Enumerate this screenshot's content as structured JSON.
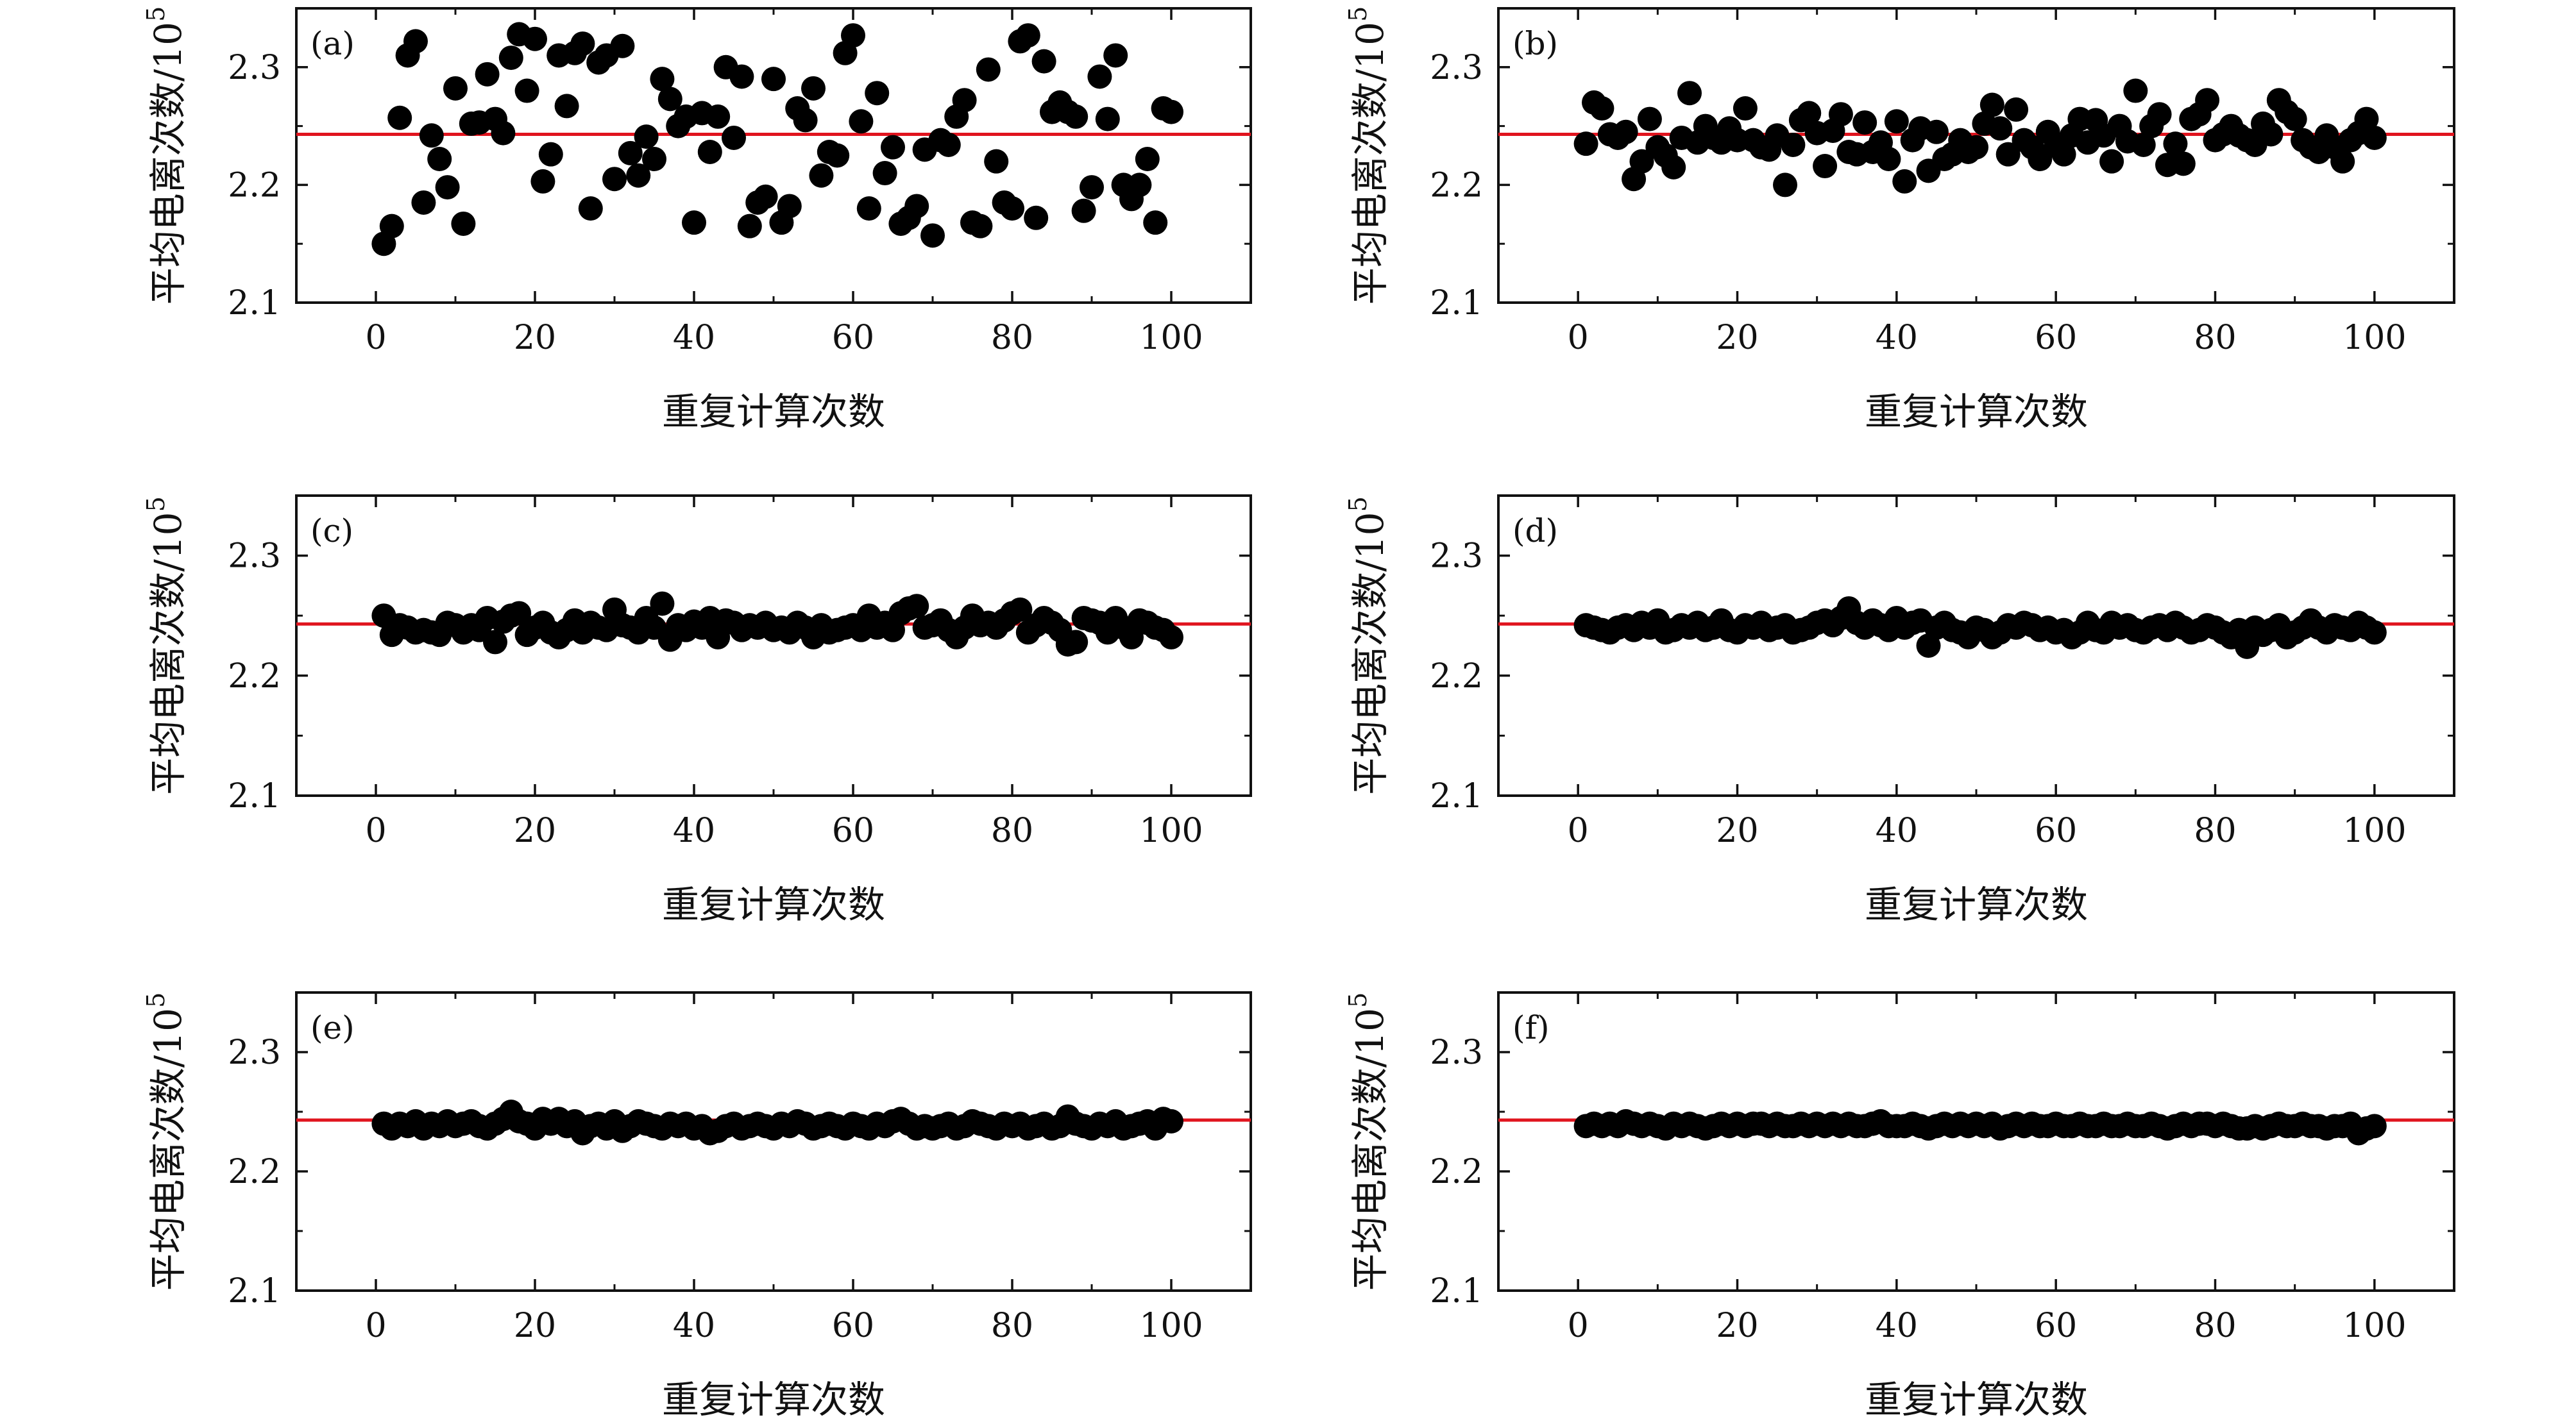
{
  "chart_data": [
    {
      "type": "scatter",
      "panel_label": "(a)",
      "xlabel": "重复计算次数",
      "ylabel": "平均电离次数/10",
      "ylabel_exponent": "5",
      "xlim": [
        -10,
        110
      ],
      "ylim": [
        2.1,
        2.35
      ],
      "xticks": [
        "0",
        "20",
        "40",
        "60",
        "80",
        "100"
      ],
      "yticks": [
        "2.1",
        "2.2",
        "2.3"
      ],
      "reference_line": 2.243,
      "point_color": "#000000",
      "line_color": "#e0141e",
      "x": [
        1,
        2,
        3,
        4,
        5,
        6,
        7,
        8,
        9,
        10,
        11,
        12,
        13,
        14,
        15,
        16,
        17,
        18,
        19,
        20,
        21,
        22,
        23,
        24,
        25,
        26,
        27,
        28,
        29,
        30,
        31,
        32,
        33,
        34,
        35,
        36,
        37,
        38,
        39,
        40,
        41,
        42,
        43,
        44,
        45,
        46,
        47,
        48,
        49,
        50,
        51,
        52,
        53,
        54,
        55,
        56,
        57,
        58,
        59,
        60,
        61,
        62,
        63,
        64,
        65,
        66,
        67,
        68,
        69,
        70,
        71,
        72,
        73,
        74,
        75,
        76,
        77,
        78,
        79,
        80,
        81,
        82,
        83,
        84,
        85,
        86,
        87,
        88,
        89,
        90,
        91,
        92,
        93,
        94,
        95,
        96,
        97,
        98,
        99,
        100
      ],
      "y": [
        2.15,
        2.165,
        2.257,
        2.31,
        2.322,
        2.185,
        2.242,
        2.222,
        2.198,
        2.282,
        2.167,
        2.252,
        2.253,
        2.294,
        2.256,
        2.244,
        2.308,
        2.328,
        2.28,
        2.324,
        2.203,
        2.226,
        2.31,
        2.267,
        2.312,
        2.32,
        2.18,
        2.304,
        2.31,
        2.205,
        2.318,
        2.227,
        2.208,
        2.241,
        2.222,
        2.29,
        2.273,
        2.25,
        2.258,
        2.168,
        2.261,
        2.228,
        2.258,
        2.3,
        2.24,
        2.292,
        2.165,
        2.185,
        2.19,
        2.29,
        2.168,
        2.182,
        2.265,
        2.255,
        2.282,
        2.208,
        2.228,
        2.225,
        2.312,
        2.327,
        2.254,
        2.18,
        2.278,
        2.21,
        2.232,
        2.167,
        2.172,
        2.182,
        2.23,
        2.157,
        2.238,
        2.234,
        2.258,
        2.272,
        2.168,
        2.165,
        2.298,
        2.22,
        2.185,
        2.18,
        2.322,
        2.327,
        2.172,
        2.305,
        2.262,
        2.27,
        2.262,
        2.258,
        2.178,
        2.198,
        2.292,
        2.256,
        2.31,
        2.2,
        2.188,
        2.2,
        2.222,
        2.168,
        2.265,
        2.262
      ]
    },
    {
      "type": "scatter",
      "panel_label": "(b)",
      "xlabel": "重复计算次数",
      "ylabel": "平均电离次数/10",
      "ylabel_exponent": "5",
      "xlim": [
        -10,
        110
      ],
      "ylim": [
        2.1,
        2.35
      ],
      "xticks": [
        "0",
        "20",
        "40",
        "60",
        "80",
        "100"
      ],
      "yticks": [
        "2.1",
        "2.2",
        "2.3"
      ],
      "reference_line": 2.243,
      "point_color": "#000000",
      "line_color": "#e0141e",
      "x": [
        1,
        2,
        3,
        4,
        5,
        6,
        7,
        8,
        9,
        10,
        11,
        12,
        13,
        14,
        15,
        16,
        17,
        18,
        19,
        20,
        21,
        22,
        23,
        24,
        25,
        26,
        27,
        28,
        29,
        30,
        31,
        32,
        33,
        34,
        35,
        36,
        37,
        38,
        39,
        40,
        41,
        42,
        43,
        44,
        45,
        46,
        47,
        48,
        49,
        50,
        51,
        52,
        53,
        54,
        55,
        56,
        57,
        58,
        59,
        60,
        61,
        62,
        63,
        64,
        65,
        66,
        67,
        68,
        69,
        70,
        71,
        72,
        73,
        74,
        75,
        76,
        77,
        78,
        79,
        80,
        81,
        82,
        83,
        84,
        85,
        86,
        87,
        88,
        89,
        90,
        91,
        92,
        93,
        94,
        95,
        96,
        97,
        98,
        99,
        100
      ],
      "y": [
        2.235,
        2.27,
        2.265,
        2.243,
        2.24,
        2.245,
        2.205,
        2.22,
        2.256,
        2.232,
        2.225,
        2.215,
        2.24,
        2.278,
        2.236,
        2.25,
        2.24,
        2.236,
        2.248,
        2.238,
        2.265,
        2.238,
        2.232,
        2.23,
        2.242,
        2.2,
        2.234,
        2.255,
        2.261,
        2.244,
        2.216,
        2.246,
        2.26,
        2.228,
        2.226,
        2.253,
        2.228,
        2.236,
        2.222,
        2.254,
        2.203,
        2.238,
        2.248,
        2.212,
        2.245,
        2.222,
        2.226,
        2.238,
        2.228,
        2.232,
        2.252,
        2.268,
        2.248,
        2.226,
        2.264,
        2.238,
        2.232,
        2.222,
        2.245,
        2.233,
        2.226,
        2.242,
        2.256,
        2.236,
        2.255,
        2.242,
        2.22,
        2.25,
        2.237,
        2.28,
        2.234,
        2.25,
        2.26,
        2.217,
        2.235,
        2.218,
        2.256,
        2.26,
        2.272,
        2.238,
        2.243,
        2.25,
        2.242,
        2.238,
        2.234,
        2.252,
        2.243,
        2.272,
        2.262,
        2.256,
        2.238,
        2.232,
        2.228,
        2.242,
        2.232,
        2.22,
        2.238,
        2.244,
        2.256,
        2.24
      ]
    },
    {
      "type": "scatter",
      "panel_label": "(c)",
      "xlabel": "重复计算次数",
      "ylabel": "平均电离次数/10",
      "ylabel_exponent": "5",
      "xlim": [
        -10,
        110
      ],
      "ylim": [
        2.1,
        2.35
      ],
      "xticks": [
        "0",
        "20",
        "40",
        "60",
        "80",
        "100"
      ],
      "yticks": [
        "2.1",
        "2.2",
        "2.3"
      ],
      "reference_line": 2.243,
      "point_color": "#000000",
      "line_color": "#e0141e",
      "x": [
        1,
        2,
        3,
        4,
        5,
        6,
        7,
        8,
        9,
        10,
        11,
        12,
        13,
        14,
        15,
        16,
        17,
        18,
        19,
        20,
        21,
        22,
        23,
        24,
        25,
        26,
        27,
        28,
        29,
        30,
        31,
        32,
        33,
        34,
        35,
        36,
        37,
        38,
        39,
        40,
        41,
        42,
        43,
        44,
        45,
        46,
        47,
        48,
        49,
        50,
        51,
        52,
        53,
        54,
        55,
        56,
        57,
        58,
        59,
        60,
        61,
        62,
        63,
        64,
        65,
        66,
        67,
        68,
        69,
        70,
        71,
        72,
        73,
        74,
        75,
        76,
        77,
        78,
        79,
        80,
        81,
        82,
        83,
        84,
        85,
        86,
        87,
        88,
        89,
        90,
        91,
        92,
        93,
        94,
        95,
        96,
        97,
        98,
        99,
        100
      ],
      "y": [
        2.25,
        2.234,
        2.242,
        2.24,
        2.236,
        2.238,
        2.236,
        2.234,
        2.244,
        2.242,
        2.236,
        2.242,
        2.238,
        2.248,
        2.228,
        2.245,
        2.25,
        2.252,
        2.234,
        2.24,
        2.244,
        2.236,
        2.232,
        2.238,
        2.246,
        2.236,
        2.244,
        2.24,
        2.238,
        2.255,
        2.242,
        2.24,
        2.236,
        2.248,
        2.24,
        2.26,
        2.23,
        2.242,
        2.238,
        2.245,
        2.24,
        2.248,
        2.232,
        2.246,
        2.244,
        2.238,
        2.242,
        2.24,
        2.244,
        2.238,
        2.24,
        2.236,
        2.244,
        2.24,
        2.232,
        2.242,
        2.236,
        2.238,
        2.24,
        2.242,
        2.238,
        2.25,
        2.24,
        2.244,
        2.238,
        2.252,
        2.256,
        2.258,
        2.24,
        2.242,
        2.246,
        2.238,
        2.232,
        2.24,
        2.25,
        2.242,
        2.244,
        2.24,
        2.246,
        2.252,
        2.255,
        2.236,
        2.242,
        2.248,
        2.244,
        2.238,
        2.226,
        2.228,
        2.248,
        2.246,
        2.244,
        2.236,
        2.248,
        2.24,
        2.232,
        2.246,
        2.244,
        2.24,
        2.238,
        2.232
      ]
    },
    {
      "type": "scatter",
      "panel_label": "(d)",
      "xlabel": "重复计算次数",
      "ylabel": "平均电离次数/10",
      "ylabel_exponent": "5",
      "xlim": [
        -10,
        110
      ],
      "ylim": [
        2.1,
        2.35
      ],
      "xticks": [
        "0",
        "20",
        "40",
        "60",
        "80",
        "100"
      ],
      "yticks": [
        "2.1",
        "2.2",
        "2.3"
      ],
      "reference_line": 2.243,
      "point_color": "#000000",
      "line_color": "#e0141e",
      "x": [
        1,
        2,
        3,
        4,
        5,
        6,
        7,
        8,
        9,
        10,
        11,
        12,
        13,
        14,
        15,
        16,
        17,
        18,
        19,
        20,
        21,
        22,
        23,
        24,
        25,
        26,
        27,
        28,
        29,
        30,
        31,
        32,
        33,
        34,
        35,
        36,
        37,
        38,
        39,
        40,
        41,
        42,
        43,
        44,
        45,
        46,
        47,
        48,
        49,
        50,
        51,
        52,
        53,
        54,
        55,
        56,
        57,
        58,
        59,
        60,
        61,
        62,
        63,
        64,
        65,
        66,
        67,
        68,
        69,
        70,
        71,
        72,
        73,
        74,
        75,
        76,
        77,
        78,
        79,
        80,
        81,
        82,
        83,
        84,
        85,
        86,
        87,
        88,
        89,
        90,
        91,
        92,
        93,
        94,
        95,
        96,
        97,
        98,
        99,
        100
      ],
      "y": [
        2.242,
        2.24,
        2.238,
        2.236,
        2.24,
        2.242,
        2.238,
        2.244,
        2.24,
        2.246,
        2.236,
        2.238,
        2.242,
        2.24,
        2.244,
        2.238,
        2.24,
        2.246,
        2.238,
        2.236,
        2.242,
        2.24,
        2.244,
        2.238,
        2.24,
        2.242,
        2.236,
        2.238,
        2.24,
        2.244,
        2.246,
        2.242,
        2.248,
        2.256,
        2.244,
        2.24,
        2.246,
        2.242,
        2.238,
        2.248,
        2.24,
        2.244,
        2.246,
        2.225,
        2.24,
        2.244,
        2.238,
        2.236,
        2.232,
        2.24,
        2.238,
        2.232,
        2.236,
        2.242,
        2.24,
        2.244,
        2.242,
        2.238,
        2.24,
        2.236,
        2.238,
        2.232,
        2.236,
        2.244,
        2.238,
        2.236,
        2.244,
        2.24,
        2.242,
        2.238,
        2.236,
        2.24,
        2.242,
        2.238,
        2.244,
        2.24,
        2.236,
        2.238,
        2.242,
        2.24,
        2.236,
        2.232,
        2.238,
        2.224,
        2.24,
        2.234,
        2.238,
        2.242,
        2.232,
        2.236,
        2.24,
        2.246,
        2.24,
        2.236,
        2.242,
        2.24,
        2.238,
        2.244,
        2.24,
        2.236
      ]
    },
    {
      "type": "scatter",
      "panel_label": "(e)",
      "xlabel": "重复计算次数",
      "ylabel": "平均电离次数/10",
      "ylabel_exponent": "5",
      "xlim": [
        -10,
        110
      ],
      "ylim": [
        2.1,
        2.35
      ],
      "xticks": [
        "0",
        "20",
        "40",
        "60",
        "80",
        "100"
      ],
      "yticks": [
        "2.1",
        "2.2",
        "2.3"
      ],
      "reference_line": 2.243,
      "point_color": "#000000",
      "line_color": "#e0141e",
      "x": [
        1,
        2,
        3,
        4,
        5,
        6,
        7,
        8,
        9,
        10,
        11,
        12,
        13,
        14,
        15,
        16,
        17,
        18,
        19,
        20,
        21,
        22,
        23,
        24,
        25,
        26,
        27,
        28,
        29,
        30,
        31,
        32,
        33,
        34,
        35,
        36,
        37,
        38,
        39,
        40,
        41,
        42,
        43,
        44,
        45,
        46,
        47,
        48,
        49,
        50,
        51,
        52,
        53,
        54,
        55,
        56,
        57,
        58,
        59,
        60,
        61,
        62,
        63,
        64,
        65,
        66,
        67,
        68,
        69,
        70,
        71,
        72,
        73,
        74,
        75,
        76,
        77,
        78,
        79,
        80,
        81,
        82,
        83,
        84,
        85,
        86,
        87,
        88,
        89,
        90,
        91,
        92,
        93,
        94,
        95,
        96,
        97,
        98,
        99,
        100
      ],
      "y": [
        2.24,
        2.236,
        2.24,
        2.238,
        2.242,
        2.236,
        2.24,
        2.238,
        2.242,
        2.238,
        2.24,
        2.242,
        2.238,
        2.236,
        2.24,
        2.244,
        2.25,
        2.242,
        2.24,
        2.236,
        2.244,
        2.24,
        2.244,
        2.238,
        2.242,
        2.232,
        2.238,
        2.24,
        2.236,
        2.242,
        2.234,
        2.238,
        2.242,
        2.24,
        2.238,
        2.236,
        2.24,
        2.238,
        2.24,
        2.236,
        2.238,
        2.232,
        2.234,
        2.238,
        2.24,
        2.236,
        2.238,
        2.24,
        2.238,
        2.236,
        2.24,
        2.238,
        2.242,
        2.24,
        2.236,
        2.238,
        2.24,
        2.238,
        2.236,
        2.24,
        2.238,
        2.236,
        2.24,
        2.238,
        2.242,
        2.244,
        2.24,
        2.236,
        2.238,
        2.236,
        2.238,
        2.24,
        2.236,
        2.238,
        2.242,
        2.24,
        2.238,
        2.236,
        2.24,
        2.238,
        2.24,
        2.236,
        2.238,
        2.24,
        2.236,
        2.238,
        2.246,
        2.24,
        2.238,
        2.236,
        2.24,
        2.238,
        2.242,
        2.236,
        2.238,
        2.24,
        2.242,
        2.236,
        2.244,
        2.242
      ]
    },
    {
      "type": "scatter",
      "panel_label": "(f)",
      "xlabel": "重复计算次数",
      "ylabel": "平均电离次数/10",
      "ylabel_exponent": "5",
      "xlim": [
        -10,
        110
      ],
      "ylim": [
        2.1,
        2.35
      ],
      "xticks": [
        "0",
        "20",
        "40",
        "60",
        "80",
        "100"
      ],
      "yticks": [
        "2.1",
        "2.2",
        "2.3"
      ],
      "reference_line": 2.243,
      "point_color": "#000000",
      "line_color": "#e0141e",
      "x": [
        1,
        2,
        3,
        4,
        5,
        6,
        7,
        8,
        9,
        10,
        11,
        12,
        13,
        14,
        15,
        16,
        17,
        18,
        19,
        20,
        21,
        22,
        23,
        24,
        25,
        26,
        27,
        28,
        29,
        30,
        31,
        32,
        33,
        34,
        35,
        36,
        37,
        38,
        39,
        40,
        41,
        42,
        43,
        44,
        45,
        46,
        47,
        48,
        49,
        50,
        51,
        52,
        53,
        54,
        55,
        56,
        57,
        58,
        59,
        60,
        61,
        62,
        63,
        64,
        65,
        66,
        67,
        68,
        69,
        70,
        71,
        72,
        73,
        74,
        75,
        76,
        77,
        78,
        79,
        80,
        81,
        82,
        83,
        84,
        85,
        86,
        87,
        88,
        89,
        90,
        91,
        92,
        93,
        94,
        95,
        96,
        97,
        98,
        99,
        100
      ],
      "y": [
        2.238,
        2.24,
        2.238,
        2.24,
        2.238,
        2.242,
        2.24,
        2.238,
        2.24,
        2.238,
        2.236,
        2.24,
        2.238,
        2.24,
        2.238,
        2.236,
        2.238,
        2.24,
        2.238,
        2.24,
        2.238,
        2.24,
        2.24,
        2.238,
        2.24,
        2.238,
        2.238,
        2.24,
        2.238,
        2.24,
        2.238,
        2.24,
        2.238,
        2.24,
        2.238,
        2.238,
        2.24,
        2.242,
        2.238,
        2.238,
        2.238,
        2.24,
        2.238,
        2.236,
        2.238,
        2.24,
        2.238,
        2.24,
        2.238,
        2.24,
        2.238,
        2.24,
        2.236,
        2.238,
        2.24,
        2.238,
        2.24,
        2.238,
        2.238,
        2.24,
        2.238,
        2.238,
        2.24,
        2.238,
        2.238,
        2.24,
        2.238,
        2.238,
        2.24,
        2.238,
        2.238,
        2.24,
        2.238,
        2.236,
        2.238,
        2.24,
        2.238,
        2.24,
        2.24,
        2.238,
        2.24,
        2.238,
        2.236,
        2.236,
        2.238,
        2.236,
        2.238,
        2.24,
        2.238,
        2.238,
        2.24,
        2.238,
        2.238,
        2.236,
        2.238,
        2.238,
        2.24,
        2.232,
        2.236,
        2.238
      ]
    }
  ]
}
